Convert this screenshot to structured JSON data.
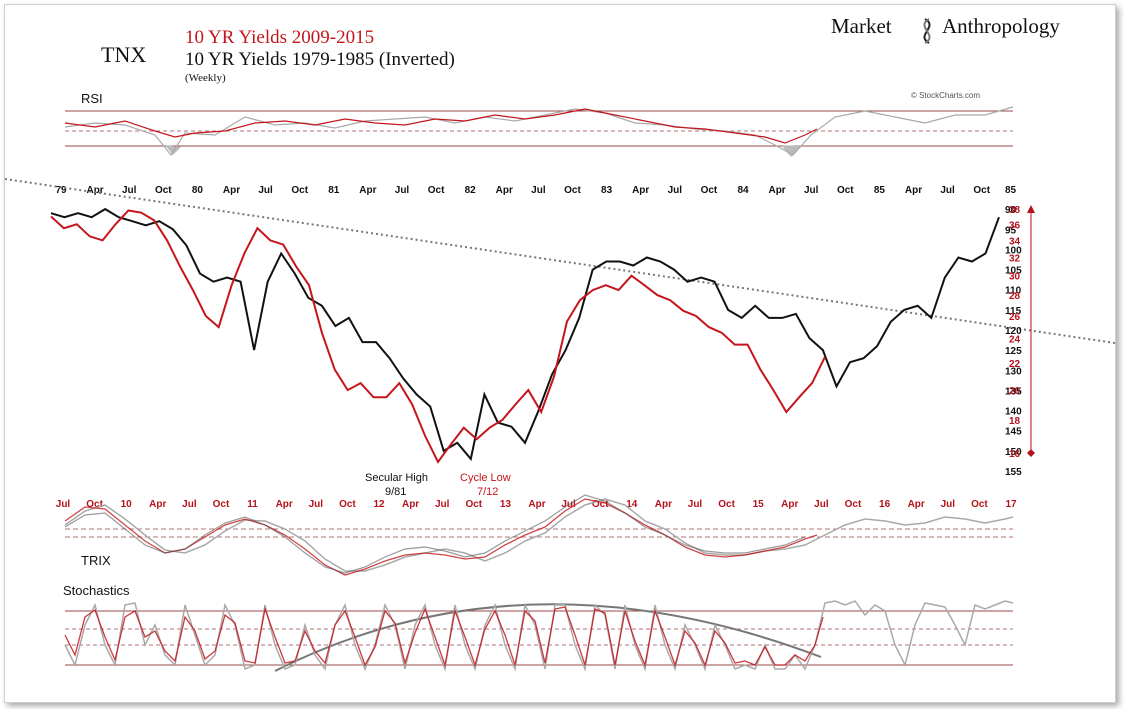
{
  "header": {
    "symbol": "TNX",
    "title_red": "10 YR Yields 2009-2015",
    "title_black": "10 YR Yields 1979-1985 (Inverted)",
    "frequency": "(Weekly)",
    "brand_left": "Market",
    "brand_right": "Anthropology",
    "source": "© StockCharts.com"
  },
  "colors": {
    "black_series": "#111111",
    "red_series": "#c4161c",
    "grey_series": "#a9a9a9",
    "axis_red": "#b5121b",
    "band_line": "#9b4a4a"
  },
  "panels": {
    "rsi_label": "RSI",
    "trix_label": "TRIX",
    "stoch_label": "Stochastics"
  },
  "annotations": {
    "secular_high": "Secular High",
    "secular_high_date": "9/81",
    "cycle_low": "Cycle Low",
    "cycle_low_date": "7/12"
  },
  "chart_data": {
    "type": "line",
    "title": "10 YR Yields 2009-2015 / 10 YR Yields 1979-1985 (Inverted)",
    "top_axis_labels": [
      "79",
      "Apr",
      "Jul",
      "Oct",
      "80",
      "Apr",
      "Jul",
      "Oct",
      "81",
      "Apr",
      "Jul",
      "Oct",
      "82",
      "Apr",
      "Jul",
      "Oct",
      "83",
      "Apr",
      "Jul",
      "Oct",
      "84",
      "Apr",
      "Jul",
      "Oct",
      "85",
      "Apr",
      "Jul",
      "Oct"
    ],
    "bottom_axis_labels": [
      "Jul",
      "Oct",
      "10",
      "Apr",
      "Jul",
      "Oct",
      "11",
      "Apr",
      "Jul",
      "Oct",
      "12",
      "Apr",
      "Jul",
      "Oct",
      "13",
      "Apr",
      "Jul",
      "Oct",
      "14",
      "Apr",
      "Jul",
      "Oct",
      "15",
      "Apr",
      "Jul",
      "Oct",
      "16",
      "Apr",
      "Jul",
      "Oct",
      "17"
    ],
    "right_inverted_axis": {
      "ticks": [
        85,
        90,
        95,
        100,
        105,
        110,
        115,
        120,
        125,
        130,
        135,
        140,
        145,
        150,
        155
      ],
      "range": [
        85,
        155
      ],
      "note": "1979-1985 yield x10, inverted"
    },
    "red_axis": {
      "ticks": [
        38,
        36,
        34,
        32,
        30,
        28,
        26,
        24,
        22,
        20,
        18,
        16
      ],
      "range": [
        16,
        38
      ],
      "scale": "log"
    },
    "series": [
      {
        "name": "10 YR Yields 1979-1985 (Inverted)",
        "x": [
          1979.0,
          1979.1,
          1979.2,
          1979.3,
          1979.4,
          1979.5,
          1979.6,
          1979.7,
          1979.8,
          1979.9,
          1980.0,
          1980.1,
          1980.2,
          1980.3,
          1980.4,
          1980.5,
          1980.6,
          1980.7,
          1980.8,
          1980.9,
          1981.0,
          1981.1,
          1981.2,
          1981.3,
          1981.4,
          1981.5,
          1981.6,
          1981.7,
          1981.8,
          1981.9,
          1982.0,
          1982.1,
          1982.2,
          1982.3,
          1982.4,
          1982.5,
          1982.6,
          1982.7,
          1982.8,
          1982.9,
          1983.0,
          1983.1,
          1983.2,
          1983.3,
          1983.4,
          1983.5,
          1983.6,
          1983.7,
          1983.8,
          1983.9,
          1984.0,
          1984.1,
          1984.2,
          1984.3,
          1984.4,
          1984.5,
          1984.6,
          1984.7,
          1984.8,
          1984.9,
          1985.0,
          1985.1,
          1985.2,
          1985.3,
          1985.4,
          1985.5,
          1985.6,
          1985.7,
          1985.8,
          1985.9,
          1986.0
        ],
        "values": [
          91,
          92,
          91,
          92,
          90,
          92,
          93,
          94,
          93,
          95,
          99,
          106,
          108,
          107,
          108,
          125,
          108,
          101,
          106,
          112,
          114,
          119,
          117,
          123,
          123,
          127,
          132,
          136,
          139,
          150,
          148,
          152,
          136,
          143,
          144,
          148,
          140,
          131,
          125,
          117,
          105,
          103,
          103,
          104,
          102,
          103,
          105,
          108,
          107,
          108,
          115,
          117,
          114,
          117,
          117,
          116,
          122,
          125,
          134,
          128,
          127,
          124,
          118,
          115,
          114,
          117,
          107,
          102,
          103,
          101,
          92
        ]
      },
      {
        "name": "10 YR Yields 2009-2015",
        "x": [
          2009.5,
          2009.6,
          2009.7,
          2009.8,
          2009.9,
          2010.0,
          2010.1,
          2010.2,
          2010.3,
          2010.4,
          2010.5,
          2010.6,
          2010.7,
          2010.8,
          2010.9,
          2011.0,
          2011.1,
          2011.2,
          2011.3,
          2011.4,
          2011.5,
          2011.6,
          2011.7,
          2011.8,
          2011.9,
          2012.0,
          2012.1,
          2012.2,
          2012.3,
          2012.4,
          2012.5,
          2012.6,
          2012.7,
          2012.8,
          2012.9,
          2013.0,
          2013.1,
          2013.2,
          2013.3,
          2013.4,
          2013.5,
          2013.6,
          2013.7,
          2013.8,
          2013.9,
          2014.0,
          2014.1,
          2014.2,
          2014.3,
          2014.4,
          2014.5,
          2014.6,
          2014.7,
          2014.8,
          2014.9,
          2015.0,
          2015.1,
          2015.2,
          2015.3,
          2015.4,
          2015.5
        ],
        "values": [
          37.0,
          35.5,
          36.0,
          34.5,
          34.0,
          36.0,
          37.8,
          37.5,
          36.5,
          34.0,
          31.0,
          28.5,
          26.0,
          25.0,
          29.0,
          32.5,
          35.5,
          34.0,
          33.5,
          31.0,
          29.0,
          24.5,
          21.5,
          20.0,
          20.5,
          19.5,
          19.5,
          20.5,
          19.0,
          17.0,
          15.5,
          16.5,
          17.5,
          16.8,
          17.5,
          18.0,
          19.0,
          20.0,
          18.5,
          21.0,
          25.5,
          27.5,
          28.5,
          29.0,
          28.5,
          30.0,
          29.0,
          28.0,
          27.5,
          26.5,
          26.0,
          25.0,
          24.5,
          23.5,
          23.5,
          21.5,
          20.0,
          18.5,
          19.5,
          20.5,
          22.5
        ]
      }
    ]
  }
}
